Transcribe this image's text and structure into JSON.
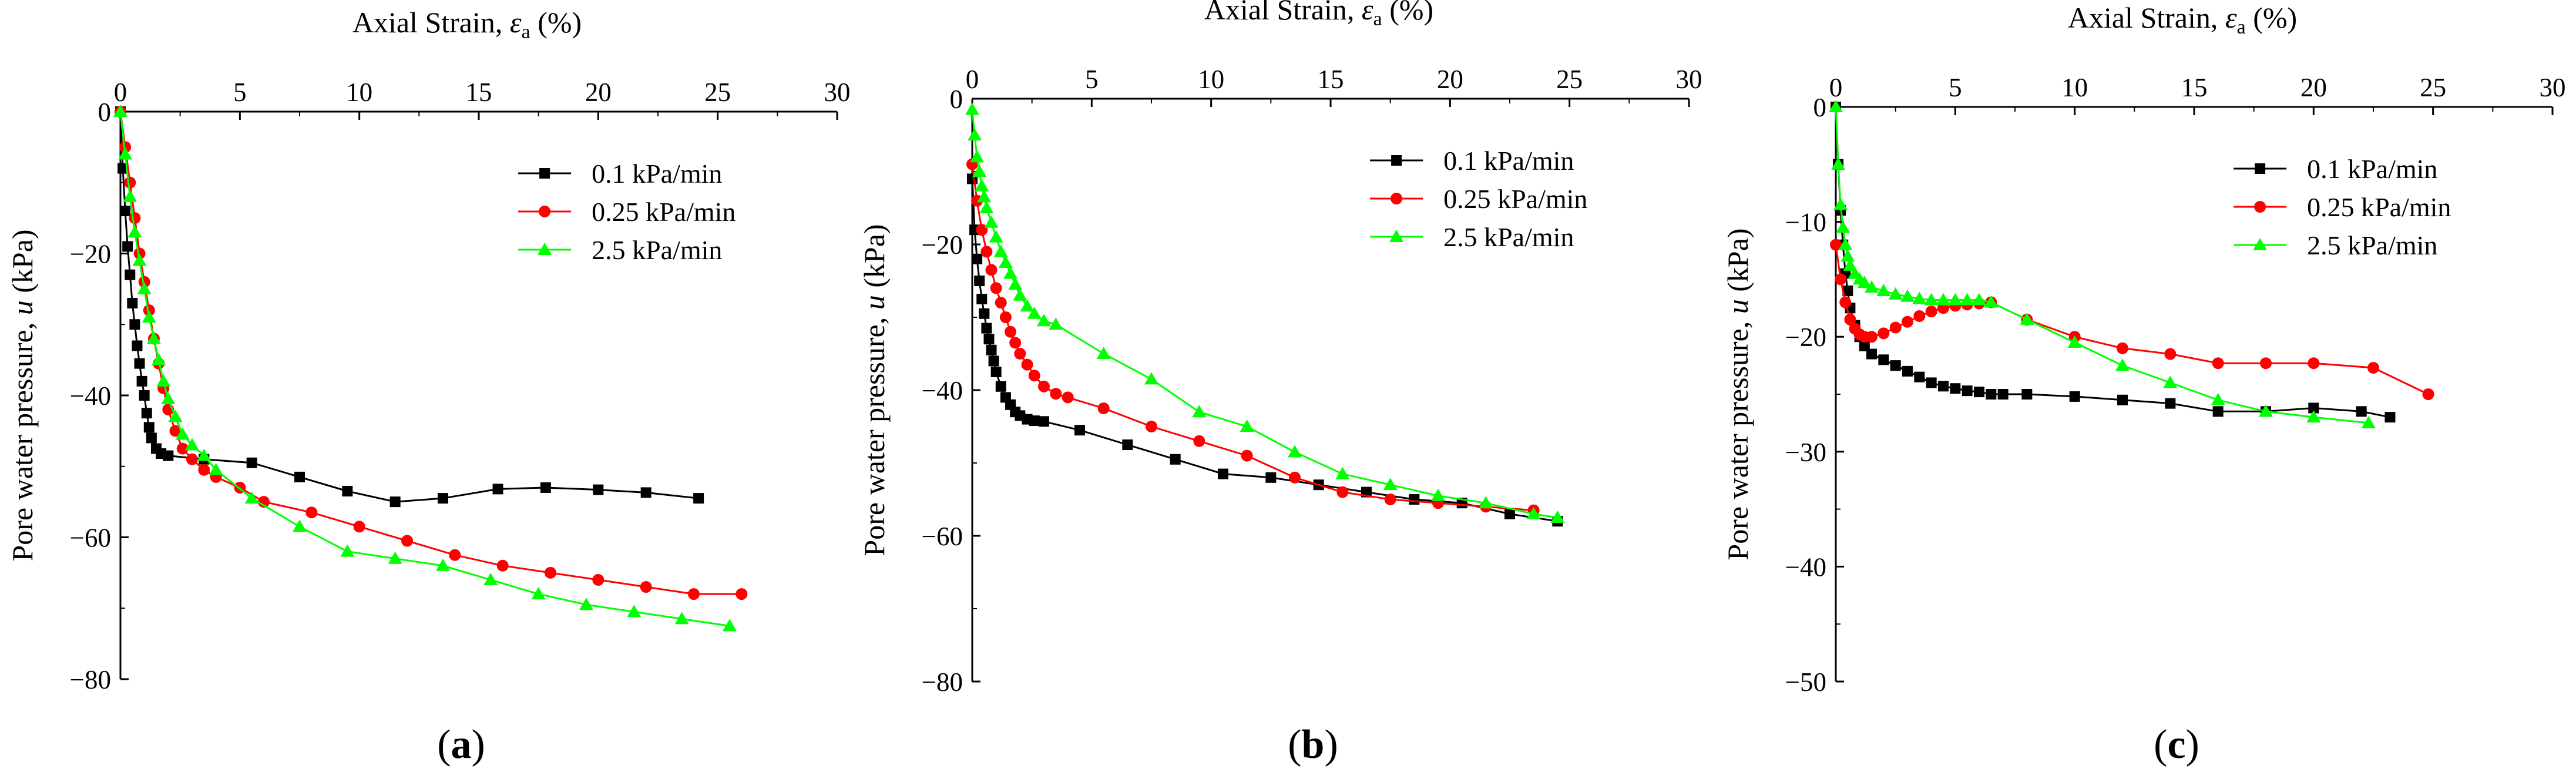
{
  "chart_data": [
    {
      "type": "line",
      "panel_label": "(a)",
      "panel_letter": "a",
      "xlabel": "Axial Strain, ",
      "xlabel_symbol": "ε",
      "xlabel_sub": "a",
      "xlabel_unit": " (%)",
      "ylabel": "Pore water pressure, ",
      "ylabel_symbol": "u",
      "ylabel_unit": " (kPa)",
      "xlim": [
        0,
        30
      ],
      "ylim": [
        -80,
        0
      ],
      "xticks": [
        0,
        5,
        10,
        15,
        20,
        25,
        30
      ],
      "yticks": [
        0,
        -20,
        -40,
        -60,
        -80
      ],
      "xtick_labels": [
        "0",
        "5",
        "10",
        "15",
        "20",
        "25",
        "30"
      ],
      "ytick_labels": [
        "0",
        "−20",
        "−40",
        "−60",
        "−80"
      ],
      "legend_position": "top-right",
      "series": [
        {
          "name": "0.1  kPa/min",
          "color": "#000000",
          "marker": "square",
          "x": [
            0,
            0.1,
            0.2,
            0.3,
            0.4,
            0.5,
            0.6,
            0.7,
            0.8,
            0.9,
            1.0,
            1.1,
            1.2,
            1.3,
            1.5,
            1.7,
            2.0,
            3.5,
            5.5,
            7.5,
            9.5,
            11.5,
            13.5,
            15.8,
            17.8,
            20.0,
            22.0,
            24.2
          ],
          "y": [
            0,
            -8,
            -14,
            -19,
            -23,
            -27,
            -30,
            -33,
            -35.5,
            -38,
            -40,
            -42.5,
            -44.5,
            -46,
            -47.5,
            -48.2,
            -48.5,
            -49,
            -49.5,
            -51.5,
            -53.5,
            -55,
            -54.5,
            -53.2,
            -53,
            -53.3,
            -53.7,
            -54.5
          ]
        },
        {
          "name": "0.25 kPa/min",
          "color": "#ff0000",
          "marker": "circle",
          "x": [
            0,
            0.2,
            0.4,
            0.6,
            0.8,
            1.0,
            1.2,
            1.4,
            1.6,
            1.8,
            2.0,
            2.3,
            2.6,
            3.0,
            3.5,
            4.0,
            5.0,
            6.0,
            8.0,
            10.0,
            12.0,
            14.0,
            16.0,
            18.0,
            20.0,
            22.0,
            24.0,
            26.0
          ],
          "y": [
            0,
            -5,
            -10,
            -15,
            -20,
            -24,
            -28,
            -32,
            -35.5,
            -39,
            -42,
            -45,
            -47.5,
            -49,
            -50.5,
            -51.5,
            -53,
            -55,
            -56.5,
            -58.5,
            -60.5,
            -62.5,
            -64,
            -65,
            -66,
            -67,
            -68,
            -68
          ]
        },
        {
          "name": "2.5  kPa/min",
          "color": "#00ff00",
          "marker": "triangle",
          "x": [
            0,
            0.2,
            0.4,
            0.6,
            0.8,
            1.0,
            1.2,
            1.4,
            1.6,
            1.8,
            2.0,
            2.3,
            2.6,
            3.0,
            3.5,
            4.0,
            5.5,
            7.5,
            9.5,
            11.5,
            13.5,
            15.5,
            17.5,
            19.5,
            21.5,
            23.5,
            25.5
          ],
          "y": [
            0,
            -6,
            -12,
            -17,
            -21,
            -25,
            -29,
            -32,
            -35,
            -38,
            -40.5,
            -43,
            -45.5,
            -47,
            -48.5,
            -50.5,
            -54.5,
            -58.5,
            -62,
            -63,
            -64,
            -66,
            -68,
            -69.5,
            -70.5,
            -71.5,
            -72.5
          ]
        }
      ]
    },
    {
      "type": "line",
      "panel_label": "(b)",
      "panel_letter": "b",
      "xlabel": "Axial Strain, ",
      "xlabel_symbol": "ε",
      "xlabel_sub": "a",
      "xlabel_unit": " (%)",
      "ylabel": "Pore water pressure, ",
      "ylabel_symbol": "u",
      "ylabel_unit": " (kPa)",
      "xlim": [
        0,
        30
      ],
      "ylim": [
        -80,
        0
      ],
      "xticks": [
        0,
        5,
        10,
        15,
        20,
        25,
        30
      ],
      "yticks": [
        0,
        -20,
        -40,
        -60,
        -80
      ],
      "xtick_labels": [
        "0",
        "5",
        "10",
        "15",
        "20",
        "25",
        "30"
      ],
      "ytick_labels": [
        "0",
        "−20",
        "−40",
        "−60",
        "−80"
      ],
      "legend_position": "top-right",
      "series": [
        {
          "name": "0.1  kPa/min",
          "color": "#000000",
          "marker": "square",
          "x": [
            0,
            0.1,
            0.2,
            0.3,
            0.4,
            0.5,
            0.6,
            0.7,
            0.8,
            0.9,
            1.0,
            1.2,
            1.4,
            1.6,
            1.8,
            2.0,
            2.3,
            2.6,
            3.0,
            4.5,
            6.5,
            8.5,
            10.5,
            12.5,
            14.5,
            16.5,
            18.5,
            20.5,
            22.5,
            24.5
          ],
          "y": [
            -11,
            -18,
            -22,
            -25,
            -27.5,
            -29.5,
            -31.5,
            -33,
            -34.5,
            -36,
            -37.5,
            -39.5,
            -41,
            -42,
            -43,
            -43.5,
            -44,
            -44.2,
            -44.3,
            -45.5,
            -47.5,
            -49.5,
            -51.5,
            -52,
            -53,
            -54,
            -55,
            -55.5,
            -57,
            -58
          ]
        },
        {
          "name": "0.25 kPa/min",
          "color": "#ff0000",
          "marker": "circle",
          "x": [
            0,
            0.2,
            0.4,
            0.6,
            0.8,
            1.0,
            1.2,
            1.4,
            1.6,
            1.8,
            2.0,
            2.3,
            2.6,
            3.0,
            3.5,
            4.0,
            5.5,
            7.5,
            9.5,
            11.5,
            13.5,
            15.5,
            17.5,
            19.5,
            21.5,
            23.5
          ],
          "y": [
            -9,
            -14,
            -18,
            -21,
            -23.5,
            -26,
            -28,
            -30,
            -32,
            -33.5,
            -35,
            -36.5,
            -38,
            -39.5,
            -40.5,
            -41,
            -42.5,
            -45,
            -47,
            -49,
            -52,
            -54,
            -55,
            -55.5,
            -56,
            -56.5
          ]
        },
        {
          "name": "2.5  kPa/min",
          "color": "#00ff00",
          "marker": "triangle",
          "x": [
            0,
            0.1,
            0.2,
            0.3,
            0.4,
            0.5,
            0.6,
            0.8,
            1.0,
            1.2,
            1.4,
            1.6,
            1.8,
            2.0,
            2.3,
            2.6,
            3.0,
            3.5,
            5.5,
            7.5,
            9.5,
            11.5,
            13.5,
            15.5,
            17.5,
            19.5,
            21.5,
            23.5,
            24.5
          ],
          "y": [
            -1.5,
            -5,
            -8,
            -10,
            -12,
            -13.5,
            -15,
            -17,
            -19,
            -21,
            -22.5,
            -24,
            -25.5,
            -27,
            -28.5,
            -29.5,
            -30.5,
            -31,
            -35,
            -38.5,
            -43,
            -45,
            -48.5,
            -51.5,
            -53,
            -54.5,
            -55.5,
            -57,
            -57.5
          ]
        }
      ]
    },
    {
      "type": "line",
      "panel_label": "(c)",
      "panel_letter": "c",
      "xlabel": "Axial Strain, ",
      "xlabel_symbol": "ε",
      "xlabel_sub": "a",
      "xlabel_unit": " (%)",
      "ylabel": "Pore water pressure, ",
      "ylabel_symbol": "u",
      "ylabel_unit": " (kPa)",
      "xlim": [
        0,
        30
      ],
      "ylim": [
        -50,
        0
      ],
      "xticks": [
        0,
        5,
        10,
        15,
        20,
        25,
        30
      ],
      "yticks": [
        0,
        -10,
        -20,
        -30,
        -40,
        -50
      ],
      "xtick_labels": [
        "0",
        "5",
        "10",
        "15",
        "20",
        "25",
        "30"
      ],
      "ytick_labels": [
        "0",
        "−10",
        "−20",
        "−30",
        "−40",
        "−50"
      ],
      "legend_position": "top-right",
      "series": [
        {
          "name": "0.1  kPa/min",
          "color": "#000000",
          "marker": "square",
          "x": [
            0,
            0.1,
            0.2,
            0.3,
            0.4,
            0.5,
            0.6,
            0.8,
            1.0,
            1.2,
            1.5,
            2.0,
            2.5,
            3.0,
            3.5,
            4.0,
            4.5,
            5.0,
            5.5,
            6.0,
            6.5,
            7.0,
            8.0,
            10.0,
            12.0,
            14.0,
            16.0,
            18.0,
            20.0,
            22.0,
            23.2
          ],
          "y": [
            0,
            -5,
            -9,
            -12,
            -14.5,
            -16,
            -17.5,
            -19,
            -20,
            -20.8,
            -21.5,
            -22,
            -22.5,
            -23,
            -23.5,
            -24,
            -24.3,
            -24.5,
            -24.7,
            -24.8,
            -25,
            -25,
            -25,
            -25.2,
            -25.5,
            -25.8,
            -26.5,
            -26.5,
            -26.2,
            -26.5,
            -27
          ]
        },
        {
          "name": "0.25 kPa/min",
          "color": "#ff0000",
          "marker": "circle",
          "x": [
            0,
            0.2,
            0.4,
            0.6,
            0.8,
            1.0,
            1.2,
            1.5,
            2.0,
            2.5,
            3.0,
            3.5,
            4.0,
            4.5,
            5.0,
            5.5,
            6.0,
            6.5,
            8.0,
            10.0,
            12.0,
            14.0,
            16.0,
            18.0,
            20.0,
            22.5,
            24.8
          ],
          "y": [
            -12,
            -15,
            -17,
            -18.5,
            -19.3,
            -19.8,
            -20,
            -20,
            -19.7,
            -19.2,
            -18.7,
            -18.2,
            -17.8,
            -17.5,
            -17.3,
            -17.2,
            -17.1,
            -17,
            -18.5,
            -20,
            -21,
            -21.5,
            -22.3,
            -22.3,
            -22.3,
            -22.7,
            -25
          ]
        },
        {
          "name": "2.5  kPa/min",
          "color": "#00ff00",
          "marker": "triangle",
          "x": [
            0,
            0.1,
            0.2,
            0.3,
            0.4,
            0.5,
            0.6,
            0.8,
            1.0,
            1.2,
            1.5,
            2.0,
            2.5,
            3.0,
            3.5,
            4.0,
            4.5,
            5.0,
            5.5,
            6.0,
            6.5,
            8.0,
            10.0,
            12.0,
            14.0,
            16.0,
            18.0,
            20.0,
            22.3
          ],
          "y": [
            0,
            -5,
            -8.5,
            -10.5,
            -12,
            -13,
            -13.8,
            -14.5,
            -15,
            -15.3,
            -15.7,
            -16,
            -16.3,
            -16.5,
            -16.7,
            -16.8,
            -16.8,
            -16.8,
            -16.8,
            -16.8,
            -17,
            -18.5,
            -20.5,
            -22.5,
            -24,
            -25.5,
            -26.5,
            -27,
            -27.5
          ]
        }
      ]
    }
  ]
}
